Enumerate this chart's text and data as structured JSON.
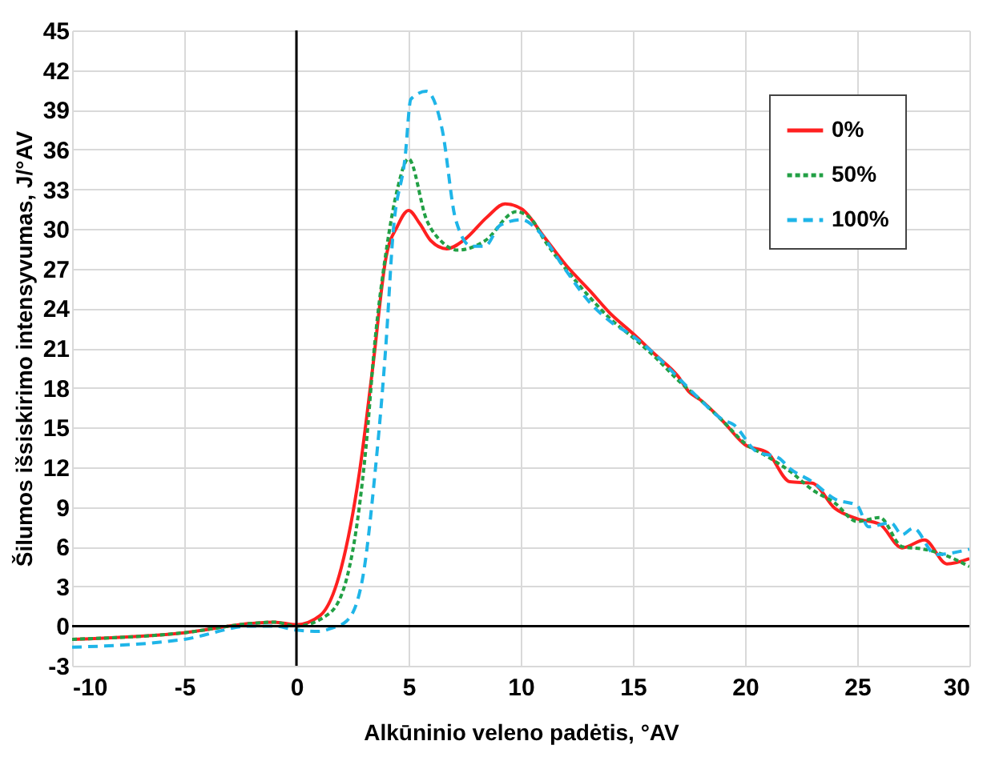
{
  "chart_data": {
    "type": "line",
    "xlabel": "Alkūninio veleno padėtis, °AV",
    "ylabel": "Šilumos išsiskirimo intensyvumas, J/°AV",
    "xlim": [
      -10,
      30
    ],
    "xticks": [
      -10,
      -5,
      0,
      5,
      10,
      15,
      20,
      25,
      30
    ],
    "ylim": [
      -3,
      45
    ],
    "yticks": [
      -3,
      0,
      3,
      6,
      9,
      12,
      15,
      18,
      21,
      24,
      27,
      30,
      33,
      36,
      39,
      42,
      45
    ],
    "grid": true,
    "legend": "top right",
    "marker": "none",
    "series": [
      {
        "name": "0%",
        "color": "#ff2020",
        "line_style": "solid",
        "x": [
          -10,
          -5,
          -2,
          -1,
          0,
          1.06,
          2,
          2.8,
          3.4,
          4,
          4.5,
          5,
          5.5,
          6,
          6.7,
          7.5,
          8.5,
          9.3,
          10.05,
          11,
          12,
          13.1,
          14,
          15,
          16,
          17,
          17.5,
          18,
          19,
          20,
          21,
          22,
          23,
          24,
          25,
          26,
          27,
          28,
          29,
          30
        ],
        "values": [
          -1.0,
          -0.5,
          0.2,
          0.3,
          0.1,
          0.8,
          4.4,
          11.5,
          19.5,
          27.9,
          30.2,
          31.4,
          30.4,
          29.1,
          28.5,
          29.2,
          30.9,
          31.9,
          31.5,
          29.5,
          27.3,
          25.3,
          23.6,
          22.1,
          20.5,
          18.9,
          17.7,
          17.1,
          15.5,
          13.7,
          13.1,
          10.9,
          10.8,
          8.9,
          8.1,
          7.7,
          5.9,
          6.5,
          4.7,
          5.1
        ]
      },
      {
        "name": "50%",
        "color": "#22a045",
        "line_style": "dotted",
        "x": [
          -10,
          -5,
          -2,
          -1,
          0,
          1.5,
          2.5,
          3.1,
          3.5,
          4,
          4.5,
          5,
          5.8,
          6.5,
          7.2,
          8.4,
          9.8,
          10.5,
          11,
          12,
          13.1,
          14,
          15,
          16,
          17,
          18,
          19,
          20,
          21,
          22,
          23,
          24,
          25,
          26,
          27,
          28,
          29,
          30
        ],
        "values": [
          -1.0,
          -0.5,
          0.2,
          0.3,
          0.0,
          1.0,
          5.6,
          13.5,
          21.5,
          28.3,
          33.0,
          35.3,
          30.7,
          29.0,
          28.4,
          29.1,
          31.3,
          30.7,
          29.3,
          27.0,
          24.8,
          23.2,
          21.8,
          20.3,
          18.6,
          17.1,
          15.5,
          13.8,
          12.8,
          11.7,
          10.3,
          9.3,
          7.9,
          8.2,
          6.0,
          5.8,
          5.3,
          4.5
        ]
      },
      {
        "name": "100%",
        "color": "#1fb5e8",
        "line_style": "dashed",
        "x": [
          -10,
          -5,
          -2,
          -1,
          0,
          1,
          1.5,
          2.25,
          2.95,
          3.5,
          4,
          4.3,
          4.85,
          5.1,
          5.8,
          6.5,
          7.1,
          7.8,
          8.4,
          9.1,
          10.05,
          10.75,
          12,
          13.1,
          14,
          15,
          16,
          17,
          18,
          19,
          19.5,
          20.5,
          21.5,
          22,
          23,
          24,
          25,
          25.5,
          26.5,
          27,
          27.5,
          28.5,
          30
        ],
        "values": [
          -1.6,
          -1.0,
          0.0,
          0.0,
          -0.3,
          -0.4,
          -0.2,
          0.4,
          3.6,
          11.5,
          21.5,
          29.5,
          35.5,
          39.8,
          40.4,
          37.5,
          30.7,
          28.7,
          28.7,
          30.3,
          30.7,
          29.9,
          26.9,
          24.4,
          23.0,
          21.9,
          20.5,
          18.8,
          17.1,
          15.6,
          15.2,
          13.2,
          12.7,
          11.9,
          10.9,
          9.6,
          9.1,
          7.5,
          7.8,
          6.9,
          7.4,
          5.4,
          5.8
        ]
      }
    ]
  }
}
